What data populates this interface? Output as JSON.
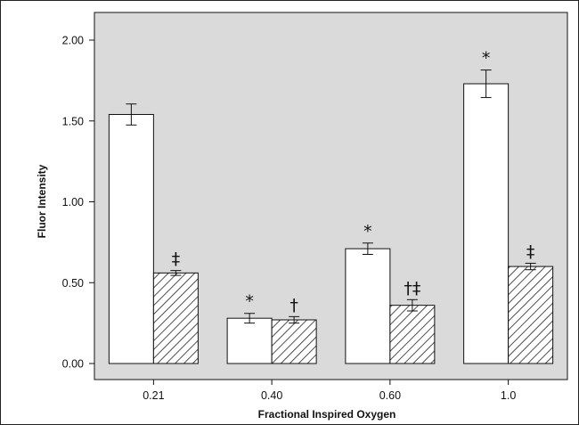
{
  "chart_data": {
    "type": "bar",
    "xlabel": "Fractional Inspired Oxygen",
    "ylabel": "Fluor Intensity",
    "ylim": [
      0,
      2
    ],
    "yticks": [
      "0.00",
      "0.50",
      "1.00",
      "1.50",
      "2.00"
    ],
    "categories": [
      "0.21",
      "0.40",
      "0.60",
      "1.0"
    ],
    "series": [
      {
        "pattern": "open",
        "values": [
          1.54,
          0.28,
          0.71,
          1.73
        ],
        "errors": [
          0.065,
          0.03,
          0.035,
          0.085
        ],
        "markers": [
          "",
          "*",
          "*",
          "*"
        ]
      },
      {
        "pattern": "hatched",
        "values": [
          0.56,
          0.27,
          0.36,
          0.6
        ],
        "errors": [
          0.015,
          0.02,
          0.035,
          0.02
        ],
        "markers": [
          "‡",
          "†",
          "†‡",
          "‡"
        ]
      }
    ],
    "grid": false,
    "legend": "none",
    "colors": {
      "plot_bg": "#dadada",
      "open_bar": "#ffffff",
      "hatch_line": "#222222",
      "axis": "#111111"
    }
  }
}
